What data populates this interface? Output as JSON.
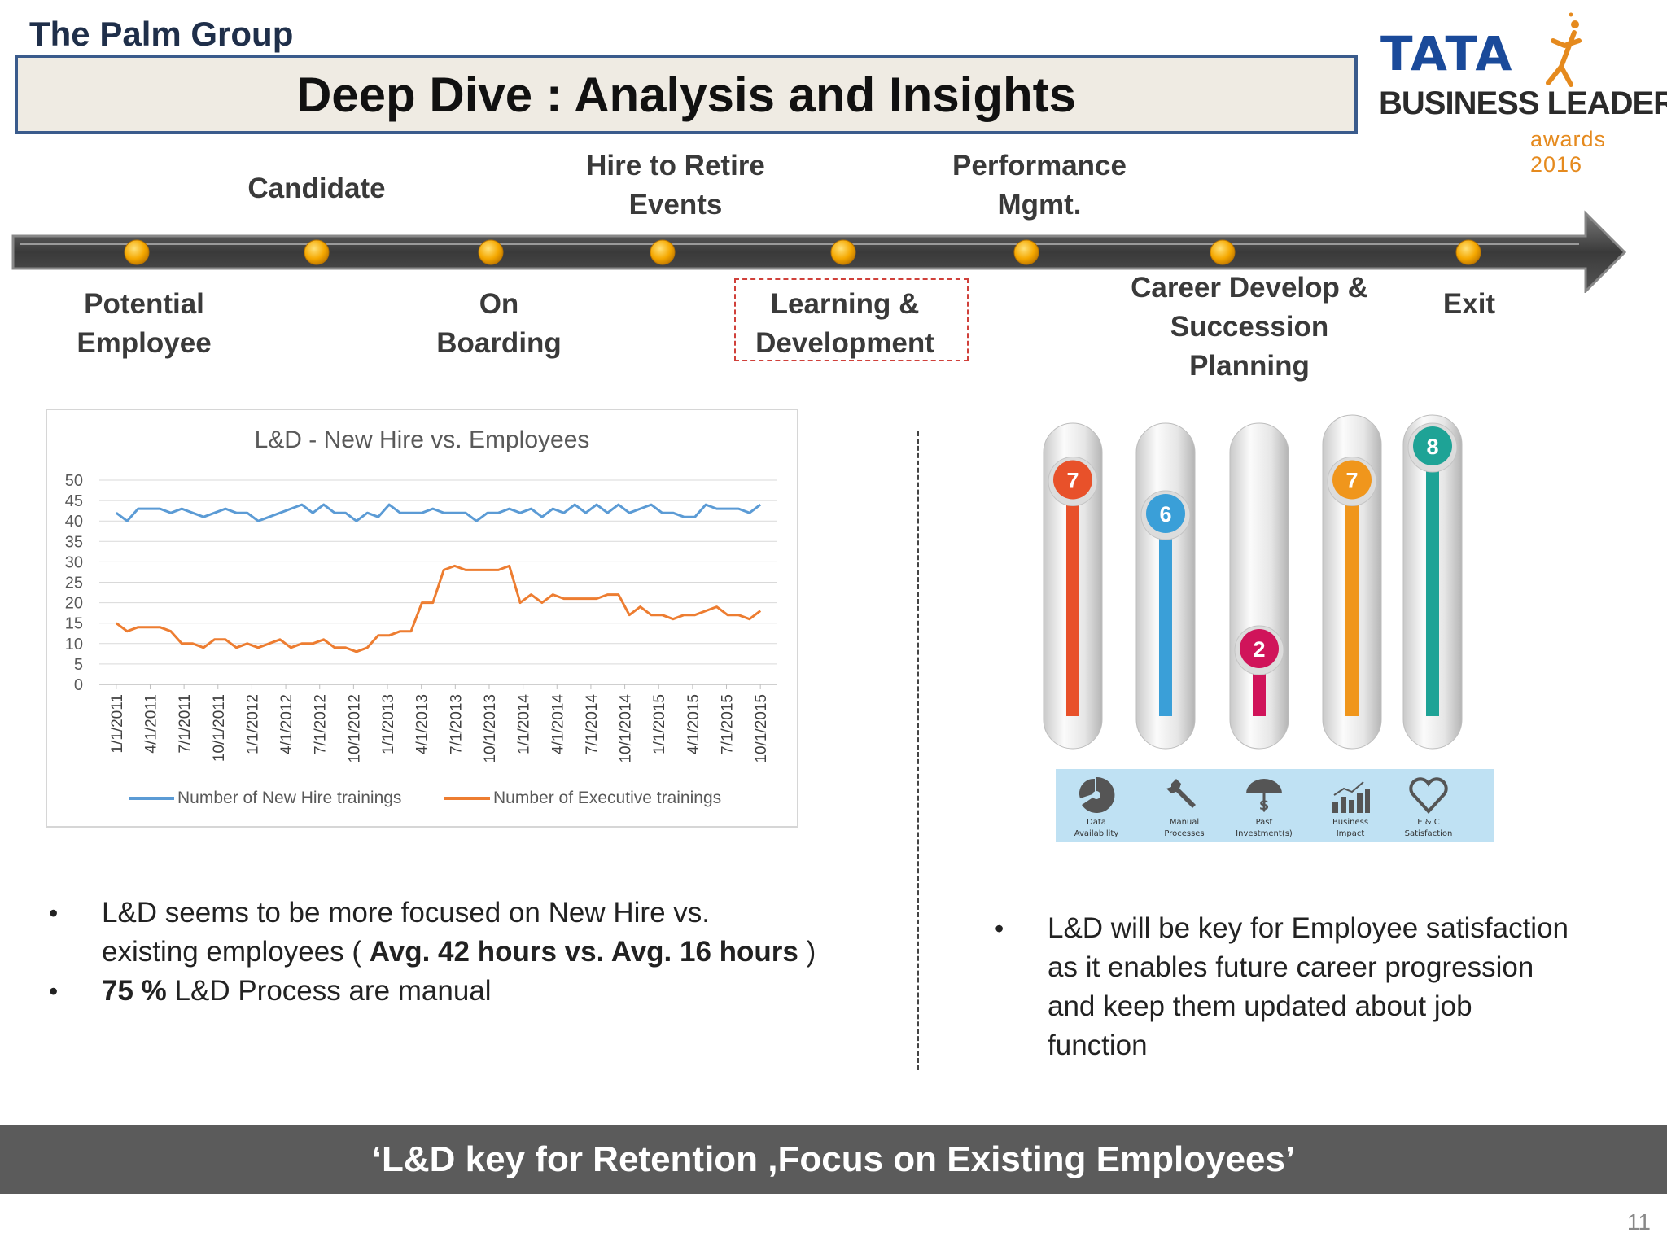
{
  "header": {
    "group": "The Palm Group",
    "title": "Deep Dive : Analysis and Insights"
  },
  "logo": {
    "brand": "TATA",
    "line": "BUSINESS LEADERSHIP",
    "awards": "awards 2016"
  },
  "timeline": {
    "above": [
      {
        "id": "candidate",
        "line1": "Candidate",
        "line2": ""
      },
      {
        "id": "hire-to-retire",
        "line1": "Hire to Retire",
        "line2": "Events"
      },
      {
        "id": "performance",
        "line1": "Performance",
        "line2": "Mgmt."
      }
    ],
    "below": [
      {
        "id": "potential-employee",
        "line1": "Potential",
        "line2": "Employee",
        "line3": ""
      },
      {
        "id": "on-boarding",
        "line1": "On",
        "line2": "Boarding",
        "line3": ""
      },
      {
        "id": "learning-development",
        "line1": "Learning &",
        "line2": "Development",
        "line3": ""
      },
      {
        "id": "career-develop",
        "line1": "Career Develop &",
        "line2": "Succession",
        "line3": "Planning"
      },
      {
        "id": "exit",
        "line1": "Exit",
        "line2": "",
        "line3": ""
      }
    ]
  },
  "chart_data": {
    "type": "line",
    "title": "L&D - New Hire vs. Employees",
    "xlabel": "",
    "ylabel": "",
    "ylim": [
      0,
      50
    ],
    "yticks": [
      0,
      5,
      10,
      15,
      20,
      25,
      30,
      35,
      40,
      45,
      50
    ],
    "grid": true,
    "legend": "bottom",
    "x_tick_labels": [
      "1/1/2011",
      "4/1/2011",
      "7/1/2011",
      "10/1/2011",
      "1/1/2012",
      "4/1/2012",
      "7/1/2012",
      "10/1/2012",
      "1/1/2013",
      "4/1/2013",
      "7/1/2013",
      "10/1/2013",
      "1/1/2014",
      "4/1/2014",
      "7/1/2014",
      "10/1/2014",
      "1/1/2015",
      "4/1/2015",
      "7/1/2015",
      "10/1/2015"
    ],
    "series": [
      {
        "name": "Number of New Hire trainings",
        "color": "#5b9bd5",
        "values": [
          42,
          40,
          43,
          43,
          43,
          42,
          43,
          42,
          41,
          42,
          43,
          42,
          42,
          40,
          41,
          42,
          43,
          44,
          42,
          44,
          42,
          42,
          40,
          42,
          41,
          44,
          42,
          42,
          42,
          43,
          42,
          42,
          42,
          40,
          42,
          42,
          43,
          42,
          43,
          41,
          43,
          42,
          44,
          42,
          44,
          42,
          44,
          42,
          43,
          44,
          42,
          42,
          41,
          41,
          44,
          43,
          43,
          43,
          42,
          44
        ]
      },
      {
        "name": "Number of Executive trainings",
        "color": "#ed7d31",
        "values": [
          15,
          13,
          14,
          14,
          14,
          13,
          10,
          10,
          9,
          11,
          11,
          9,
          10,
          9,
          10,
          11,
          9,
          10,
          10,
          11,
          9,
          9,
          8,
          9,
          12,
          12,
          13,
          13,
          20,
          20,
          28,
          29,
          28,
          28,
          28,
          28,
          29,
          20,
          22,
          20,
          22,
          21,
          21,
          21,
          21,
          22,
          22,
          17,
          19,
          17,
          17,
          16,
          17,
          17,
          18,
          19,
          17,
          17,
          16,
          18
        ]
      }
    ]
  },
  "gauges": [
    {
      "id": "data-availability",
      "value": 7,
      "color": "#e8512a",
      "knob": "#e8512a",
      "icon": "pie-chart-icon",
      "caption1": "Data",
      "caption2": "Availability"
    },
    {
      "id": "manual-processes",
      "value": 6,
      "color": "#3a9fd8",
      "knob": "#3a9fd8",
      "icon": "wrench-icon",
      "caption1": "Manual",
      "caption2": "Processes"
    },
    {
      "id": "past-investment",
      "value": 2,
      "color": "#d0145a",
      "knob": "#d0145a",
      "icon": "umbrella-dollar-icon",
      "caption1": "Past",
      "caption2": "Investment(s)"
    },
    {
      "id": "business-impact",
      "value": 7,
      "color": "#f0961c",
      "knob": "#f0961c",
      "icon": "bar-chart-icon",
      "caption1": "Business",
      "caption2": "Impact"
    },
    {
      "id": "ec-satisfaction",
      "value": 8,
      "color": "#1ea396",
      "knob": "#1ea396",
      "icon": "heart-icon",
      "caption1": "E & C",
      "caption2": "Satisfaction"
    }
  ],
  "left_bullets": {
    "b1_pre": "L&D seems to be more focused on New Hire vs.",
    "b1_line2_pre": "existing employees ( ",
    "b1_bold": "Avg. 42 hours vs. Avg. 16 hours",
    "b1_post": " )",
    "b2_bold": "75 %",
    "b2_post": " L&D Process are manual",
    "bullet_char": "•"
  },
  "right_bullets": {
    "l1": "L&D will be key for Employee satisfaction",
    "l2": "as it enables future career progression",
    "l3": "and keep them updated about job",
    "l4": "function",
    "bullet_char": "•"
  },
  "footer": {
    "text": "‘L&D key for Retention ,Focus on Existing Employees’",
    "page": "11"
  }
}
